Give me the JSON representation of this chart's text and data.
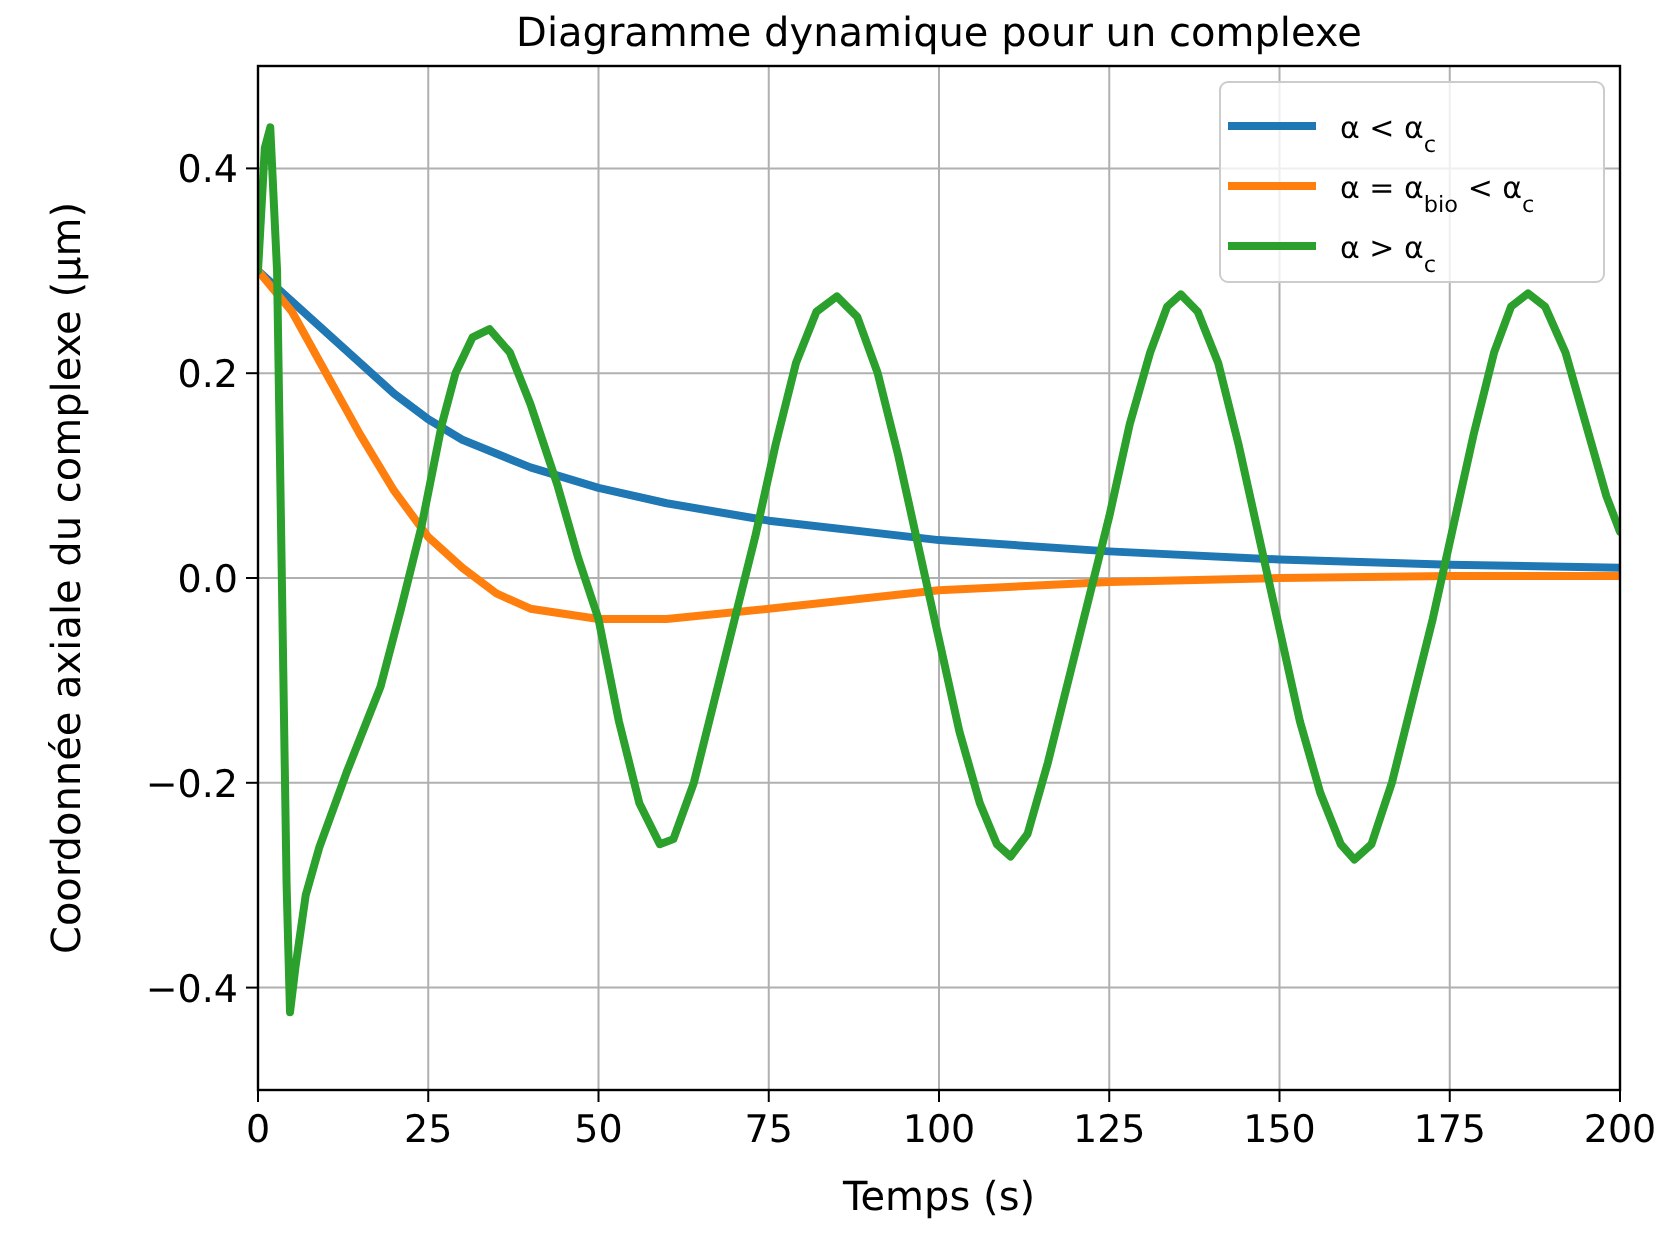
{
  "chart_data": {
    "type": "line",
    "title": "Diagramme dynamique pour un complexe",
    "xlabel": "Temps (s)",
    "ylabel": "Coordonnée axiale du complexe (μm)",
    "xlim": [
      0,
      200
    ],
    "xticks": [
      0,
      25,
      50,
      75,
      100,
      125,
      150,
      175,
      200
    ],
    "ylim": [
      -0.5,
      0.5
    ],
    "yticks": [
      {
        "value": -0.4,
        "label": "−0.4"
      },
      {
        "value": -0.2,
        "label": "−0.2"
      },
      {
        "value": 0,
        "label": "0.0"
      },
      {
        "value": 0.2,
        "label": "0.2"
      },
      {
        "value": 0.4,
        "label": "0.4"
      }
    ],
    "grid": true,
    "legend": "top right",
    "line_style": "solid",
    "marker": "none",
    "series": [
      {
        "name": "α < α$_{c}$",
        "color": "#1f77b4",
        "x": [
          0,
          5,
          10,
          15,
          20,
          25,
          30,
          40,
          50,
          60,
          75,
          100,
          125,
          150,
          175,
          200
        ],
        "values": [
          0.3,
          0.27,
          0.24,
          0.21,
          0.18,
          0.155,
          0.135,
          0.108,
          0.088,
          0.073,
          0.056,
          0.037,
          0.026,
          0.018,
          0.013,
          0.01
        ]
      },
      {
        "name": "α = α$_{bio}$ < α$_{c}$",
        "color": "#ff7f0e",
        "x": [
          0,
          5,
          10,
          15,
          20,
          25,
          30,
          35,
          40,
          50,
          60,
          75,
          100,
          125,
          150,
          175,
          200
        ],
        "values": [
          0.3,
          0.26,
          0.2,
          0.14,
          0.085,
          0.04,
          0.01,
          -0.015,
          -0.03,
          -0.04,
          -0.04,
          -0.03,
          -0.012,
          -0.004,
          0.0,
          0.002,
          0.002
        ]
      },
      {
        "name": "α > α$_{c}$",
        "color": "#2ca02c",
        "x": [
          0,
          1,
          1.8,
          2.8,
          3.5,
          4.2,
          4.7,
          5.5,
          7,
          9,
          13,
          18,
          21,
          24,
          27,
          29,
          31.5,
          34,
          37,
          40,
          44,
          47,
          50,
          53,
          56,
          59,
          61,
          64,
          67,
          70,
          73,
          76,
          79,
          82,
          85,
          88,
          91,
          94,
          97,
          100,
          103,
          106,
          108.5,
          110.5,
          113,
          116,
          119,
          122,
          125,
          128,
          131,
          133.5,
          135.5,
          138,
          141,
          144,
          147,
          150,
          153,
          156,
          159,
          161,
          163.5,
          166.5,
          169.5,
          172.5,
          175.5,
          178.5,
          181.5,
          184,
          186.5,
          189,
          192,
          195,
          198,
          200
        ],
        "values": [
          0.3,
          0.42,
          0.44,
          0.3,
          0.0,
          -0.3,
          -0.424,
          -0.38,
          -0.31,
          -0.263,
          -0.19,
          -0.106,
          -0.03,
          0.05,
          0.15,
          0.2,
          0.235,
          0.243,
          0.22,
          0.17,
          0.09,
          0.02,
          -0.04,
          -0.14,
          -0.22,
          -0.26,
          -0.255,
          -0.2,
          -0.12,
          -0.04,
          0.04,
          0.13,
          0.21,
          0.26,
          0.275,
          0.255,
          0.2,
          0.12,
          0.03,
          -0.06,
          -0.15,
          -0.22,
          -0.26,
          -0.272,
          -0.25,
          -0.18,
          -0.1,
          -0.02,
          0.06,
          0.15,
          0.22,
          0.265,
          0.277,
          0.26,
          0.21,
          0.13,
          0.04,
          -0.05,
          -0.14,
          -0.21,
          -0.26,
          -0.275,
          -0.26,
          -0.2,
          -0.12,
          -0.04,
          0.05,
          0.14,
          0.22,
          0.265,
          0.278,
          0.265,
          0.22,
          0.15,
          0.08,
          0.045
        ]
      }
    ]
  }
}
